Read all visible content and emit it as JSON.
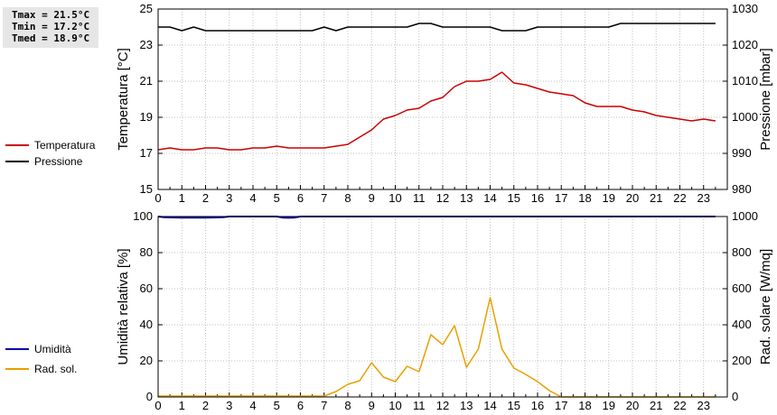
{
  "stats": {
    "tmax": "Tmax = 21.5°C",
    "tmin": "Tmin = 17.2°C",
    "tmed": "Tmed = 18.9°C"
  },
  "colors": {
    "temperature": "#cc0000",
    "pressure": "#000000",
    "humidity": "#0000aa",
    "radiation": "#e8a000",
    "grid": "#c0c0c0"
  },
  "chart_data": [
    {
      "type": "line",
      "xlim": [
        0,
        24
      ],
      "x_ticks": [
        "0",
        "1",
        "2",
        "3",
        "4",
        "5",
        "6",
        "7",
        "8",
        "9",
        "10",
        "11",
        "12",
        "13",
        "14",
        "15",
        "16",
        "17",
        "18",
        "19",
        "20",
        "21",
        "22",
        "23"
      ],
      "ylabel_left": "Temperatura [°C]",
      "ylabel_right": "Pressione [mbar]",
      "ylim_left": [
        15,
        25
      ],
      "ylim_right": [
        980,
        1030
      ],
      "y_ticks_left": [
        "15",
        "17",
        "19",
        "21",
        "23",
        "25"
      ],
      "y_ticks_right": [
        "980",
        "990",
        "1000",
        "1010",
        "1020",
        "1030"
      ],
      "grid": true,
      "legend_position": "left",
      "series": [
        {
          "name": "Temperatura",
          "axis": "left",
          "color": "#cc0000",
          "x": [
            0,
            0.5,
            1,
            1.5,
            2,
            2.5,
            3,
            3.5,
            4,
            4.5,
            5,
            5.5,
            6,
            6.5,
            7,
            7.5,
            8,
            8.5,
            9,
            9.5,
            10,
            10.5,
            11,
            11.5,
            12,
            12.5,
            13,
            13.5,
            14,
            14.5,
            15,
            15.5,
            16,
            16.5,
            17,
            17.5,
            18,
            18.5,
            19,
            19.5,
            20,
            20.5,
            21,
            21.5,
            22,
            22.5,
            23,
            23.5
          ],
          "y": [
            17.2,
            17.3,
            17.2,
            17.2,
            17.3,
            17.3,
            17.2,
            17.2,
            17.3,
            17.3,
            17.4,
            17.3,
            17.3,
            17.3,
            17.3,
            17.4,
            17.5,
            17.9,
            18.3,
            18.9,
            19.1,
            19.4,
            19.5,
            19.9,
            20.1,
            20.7,
            21.0,
            21.0,
            21.1,
            21.5,
            20.9,
            20.8,
            20.6,
            20.4,
            20.3,
            20.2,
            19.8,
            19.6,
            19.6,
            19.6,
            19.4,
            19.3,
            19.1,
            19.0,
            18.9,
            18.8,
            18.9,
            18.8
          ]
        },
        {
          "name": "Pressione",
          "axis": "right",
          "color": "#000000",
          "x": [
            0,
            0.5,
            1,
            1.5,
            2,
            2.5,
            3,
            3.5,
            4,
            4.5,
            5,
            5.5,
            6,
            6.5,
            7,
            7.5,
            8,
            8.5,
            9,
            9.5,
            10,
            10.5,
            11,
            11.5,
            12,
            12.5,
            13,
            13.5,
            14,
            14.5,
            15,
            15.5,
            16,
            16.5,
            17,
            17.5,
            18,
            18.5,
            19,
            19.5,
            20,
            20.5,
            21,
            21.5,
            22,
            22.5,
            23,
            23.5
          ],
          "y": [
            1025,
            1025,
            1024,
            1025,
            1024,
            1024,
            1024,
            1024,
            1024,
            1024,
            1024,
            1024,
            1024,
            1024,
            1025,
            1024,
            1025,
            1025,
            1025,
            1025,
            1025,
            1025,
            1026,
            1026,
            1025,
            1025,
            1025,
            1025,
            1025,
            1024,
            1024,
            1024,
            1025,
            1025,
            1025,
            1025,
            1025,
            1025,
            1025,
            1026,
            1026,
            1026,
            1026,
            1026,
            1026,
            1026,
            1026,
            1026
          ]
        }
      ]
    },
    {
      "type": "line",
      "xlim": [
        0,
        24
      ],
      "x_ticks": [
        "0",
        "1",
        "2",
        "3",
        "4",
        "5",
        "6",
        "7",
        "8",
        "9",
        "10",
        "11",
        "12",
        "13",
        "14",
        "15",
        "16",
        "17",
        "18",
        "19",
        "20",
        "21",
        "22",
        "23"
      ],
      "ylabel_left": "Umidità relativa [%]",
      "ylabel_right": "Rad. solare [W/mq]",
      "ylim_left": [
        0,
        100
      ],
      "ylim_right": [
        0,
        1000
      ],
      "y_ticks_left": [
        "0",
        "20",
        "40",
        "60",
        "80",
        "100"
      ],
      "y_ticks_right": [
        "0",
        "200",
        "400",
        "600",
        "800",
        "1000"
      ],
      "grid": true,
      "legend_position": "left",
      "series": [
        {
          "name": "Umidità",
          "axis": "left",
          "color": "#0000aa",
          "x": [
            0,
            0.25,
            0.5,
            1,
            1.5,
            2,
            2.5,
            2.75,
            3,
            4,
            5,
            5.25,
            5.5,
            5.75,
            6,
            7,
            8,
            9,
            10,
            11,
            12,
            13,
            14,
            15,
            16,
            17,
            18,
            19,
            20,
            21,
            22,
            23,
            23.5
          ],
          "y": [
            100,
            99.6,
            99.5,
            99.4,
            99.4,
            99.4,
            99.5,
            99.6,
            100,
            100,
            100,
            99.4,
            99.3,
            99.4,
            100,
            100,
            100,
            100,
            100,
            100,
            100,
            100,
            100,
            100,
            100,
            100,
            100,
            100,
            100,
            100,
            100,
            100,
            100
          ]
        },
        {
          "name": "Rad. sol.",
          "axis": "right",
          "color": "#e8a000",
          "x": [
            0,
            1,
            2,
            3,
            4,
            5,
            6,
            7,
            7.5,
            8,
            8.5,
            9,
            9.5,
            10,
            10.5,
            11,
            11.5,
            12,
            12.5,
            13,
            13.5,
            14,
            14.5,
            15,
            15.5,
            16,
            16.5,
            17,
            18,
            19,
            20,
            21,
            22,
            23,
            23.5
          ],
          "y": [
            5,
            5,
            5,
            5,
            5,
            5,
            5,
            5,
            30,
            70,
            90,
            190,
            110,
            85,
            170,
            140,
            345,
            290,
            395,
            165,
            265,
            550,
            265,
            160,
            125,
            85,
            35,
            0,
            0,
            0,
            0,
            0,
            0,
            0,
            0
          ]
        }
      ]
    }
  ],
  "legend": [
    {
      "label": "Temperatura",
      "color": "#cc0000"
    },
    {
      "label": "Pressione",
      "color": "#000000"
    },
    {
      "label": "Umidità",
      "color": "#0000aa"
    },
    {
      "label": "Rad. sol.",
      "color": "#e8a000"
    }
  ]
}
